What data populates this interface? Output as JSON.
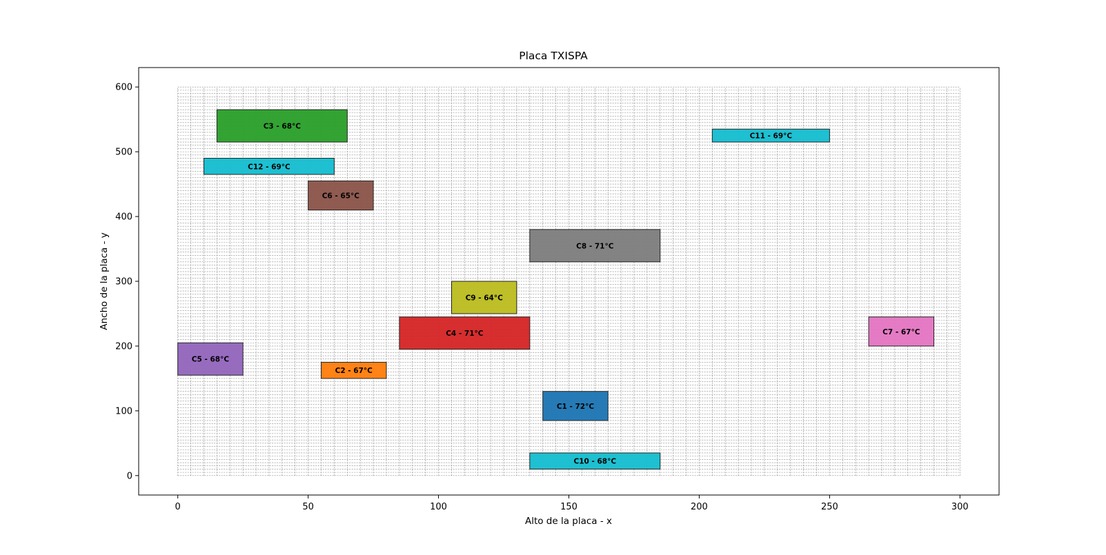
{
  "chart_data": {
    "type": "rectangles",
    "title": "Placa TXISPA",
    "xlabel": "Alto de la placa - x",
    "ylabel": "Ancho de la placa - y",
    "xlim": [
      -15,
      315
    ],
    "ylim": [
      -30,
      630
    ],
    "xticks": [
      0,
      50,
      100,
      150,
      200,
      250,
      300
    ],
    "yticks": [
      0,
      100,
      200,
      300,
      400,
      500,
      600
    ],
    "grid": {
      "x_min": 0,
      "x_max": 300,
      "y_min": 0,
      "y_max": 600,
      "step": 5,
      "color": "#888888"
    },
    "components": [
      {
        "label": "C1 - 72°C",
        "x": 140,
        "y": 85,
        "w": 25,
        "h": 45,
        "color": "#1f77b4"
      },
      {
        "label": "C2 - 67°C",
        "x": 55,
        "y": 150,
        "w": 25,
        "h": 25,
        "color": "#ff7f0e"
      },
      {
        "label": "C3 - 68°C",
        "x": 15,
        "y": 515,
        "w": 50,
        "h": 50,
        "color": "#2ca02c"
      },
      {
        "label": "C4 - 71°C",
        "x": 85,
        "y": 195,
        "w": 50,
        "h": 50,
        "color": "#d62728"
      },
      {
        "label": "C5 - 68°C",
        "x": 0,
        "y": 155,
        "w": 25,
        "h": 50,
        "color": "#9467bd"
      },
      {
        "label": "C6 - 65°C",
        "x": 50,
        "y": 410,
        "w": 25,
        "h": 45,
        "color": "#8c564b"
      },
      {
        "label": "C7 - 67°C",
        "x": 265,
        "y": 200,
        "w": 25,
        "h": 45,
        "color": "#e377c2"
      },
      {
        "label": "C8 - 71°C",
        "x": 135,
        "y": 330,
        "w": 50,
        "h": 50,
        "color": "#7f7f7f"
      },
      {
        "label": "C9 - 64°C",
        "x": 105,
        "y": 250,
        "w": 25,
        "h": 50,
        "color": "#bcbd22"
      },
      {
        "label": "C10 - 68°C",
        "x": 135,
        "y": 10,
        "w": 50,
        "h": 25,
        "color": "#17becf"
      },
      {
        "label": "C11 - 69°C",
        "x": 205,
        "y": 515,
        "w": 45,
        "h": 20,
        "color": "#17becf"
      },
      {
        "label": "C12 - 69°C",
        "x": 10,
        "y": 465,
        "w": 50,
        "h": 25,
        "color": "#17becf"
      }
    ]
  }
}
